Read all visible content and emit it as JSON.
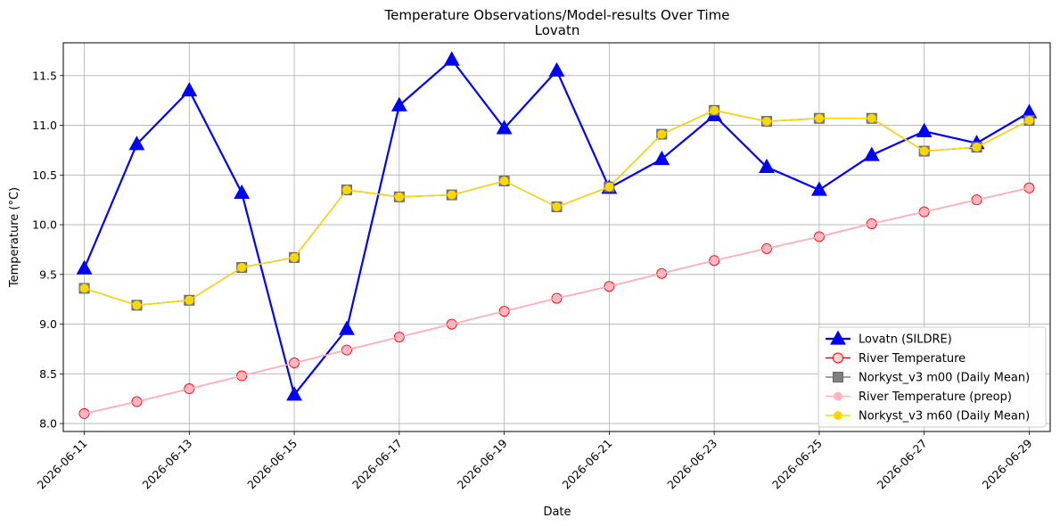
{
  "chart_data": {
    "type": "line",
    "title": "Temperature Observations/Model-results Over Time",
    "subtitle": "Lovatn",
    "xlabel": "Date",
    "ylabel": "Temperature (°C)",
    "grid": true,
    "legend_position": "lower-right",
    "xlim": [
      "2026-06-10 14:24",
      "2026-06-29 09:36"
    ],
    "ylim": [
      7.92,
      11.83
    ],
    "x_ticks": [
      "2026-06-11",
      "2026-06-13",
      "2026-06-15",
      "2026-06-17",
      "2026-06-19",
      "2026-06-21",
      "2026-06-23",
      "2026-06-25",
      "2026-06-27",
      "2026-06-29"
    ],
    "y_ticks": [
      "8.0",
      "8.5",
      "9.0",
      "9.5",
      "10.0",
      "10.5",
      "11.0",
      "11.5"
    ],
    "x": [
      "2026-06-11",
      "2026-06-12",
      "2026-06-13",
      "2026-06-14",
      "2026-06-15",
      "2026-06-16",
      "2026-06-17",
      "2026-06-18",
      "2026-06-19",
      "2026-06-20",
      "2026-06-21",
      "2026-06-22",
      "2026-06-23",
      "2026-06-24",
      "2026-06-25",
      "2026-06-26",
      "2026-06-27",
      "2026-06-28",
      "2026-06-29"
    ],
    "series": [
      {
        "name": "Lovatn (SILDRE)",
        "color": "#0000ff",
        "marker": "triangle",
        "values": [
          9.56,
          10.81,
          11.35,
          10.32,
          8.29,
          8.95,
          11.2,
          11.66,
          10.97,
          11.55,
          10.37,
          10.66,
          11.1,
          10.58,
          10.35,
          10.7,
          10.94,
          10.82,
          11.13
        ]
      },
      {
        "name": "River Temperature",
        "color": "#ff0000",
        "marker": "circle-open",
        "values": [
          8.1,
          8.22,
          8.35,
          8.48,
          8.61,
          8.74,
          8.87,
          9.0,
          9.13,
          9.26,
          9.38,
          9.51,
          9.64,
          9.76,
          9.88,
          10.01,
          10.13,
          10.25,
          10.37
        ]
      },
      {
        "name": "Norkyst_v3 m00 (Daily Mean)",
        "color": "#808080",
        "marker": "square",
        "values": [
          9.36,
          9.19,
          9.24,
          9.57,
          9.67,
          10.35,
          10.28,
          10.3,
          10.44,
          10.18,
          10.38,
          10.91,
          11.15,
          11.04,
          11.07,
          11.07,
          10.74,
          10.78,
          11.05
        ]
      },
      {
        "name": "River Temperature (preop)",
        "color": "#ffb6c1",
        "marker": "circle",
        "values": [
          8.1,
          8.22,
          8.35,
          8.48,
          8.61,
          8.74,
          8.87,
          9.0,
          9.13,
          9.26,
          9.38,
          9.51,
          9.64,
          9.76,
          9.88,
          10.01,
          10.13,
          10.25,
          10.37
        ]
      },
      {
        "name": "Norkyst_v3 m60 (Daily Mean)",
        "color": "#ffd700",
        "marker": "circle",
        "values": [
          9.36,
          9.19,
          9.24,
          9.57,
          9.67,
          10.35,
          10.28,
          10.3,
          10.44,
          10.18,
          10.38,
          10.91,
          11.15,
          11.04,
          11.07,
          11.07,
          10.74,
          10.78,
          11.05
        ]
      }
    ]
  }
}
